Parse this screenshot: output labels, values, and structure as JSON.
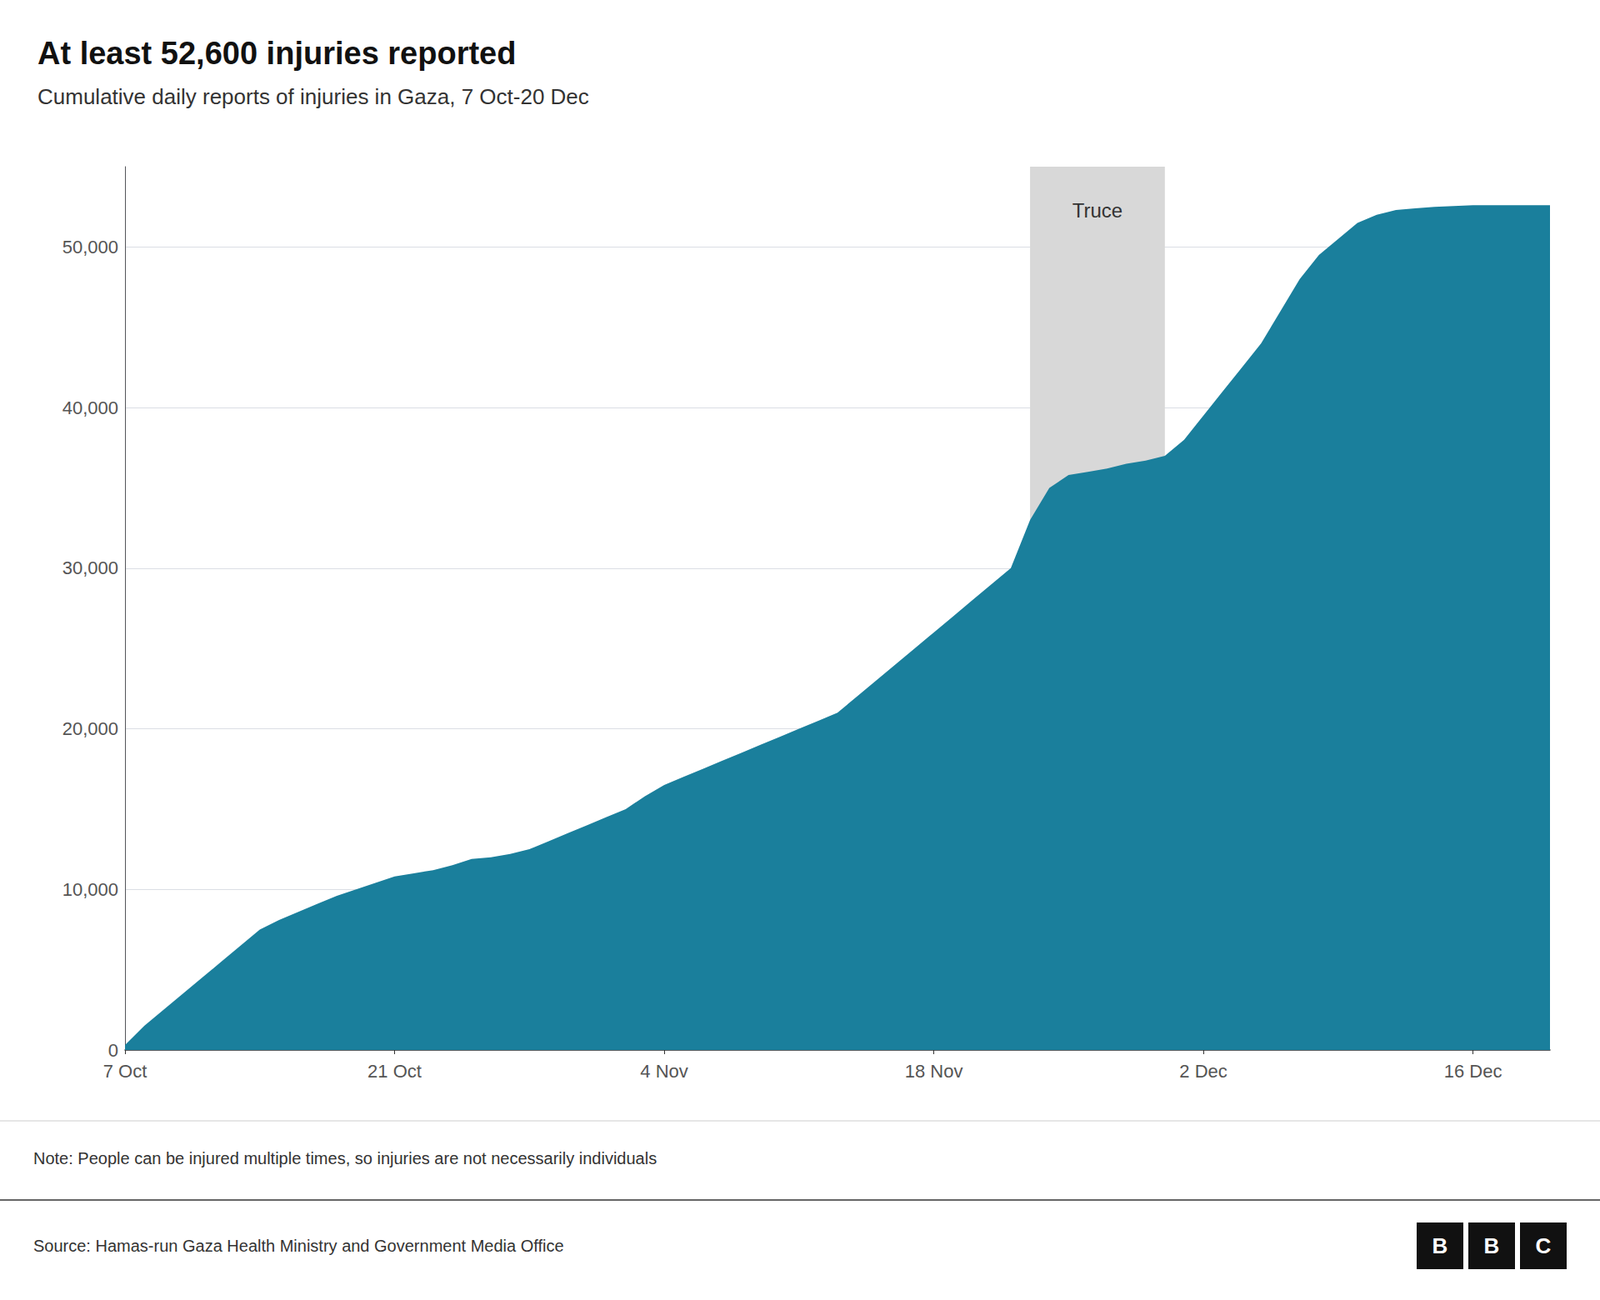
{
  "chart_data": {
    "type": "area",
    "title": "At least 52,600 injuries reported",
    "subtitle": "Cumulative daily reports of injuries in Gaza, 7 Oct-20 Dec",
    "x": [
      0,
      1,
      2,
      3,
      4,
      5,
      6,
      7,
      8,
      9,
      10,
      11,
      12,
      13,
      14,
      15,
      16,
      17,
      18,
      19,
      20,
      21,
      22,
      23,
      24,
      25,
      26,
      27,
      28,
      29,
      30,
      31,
      32,
      33,
      34,
      35,
      36,
      37,
      38,
      39,
      40,
      41,
      42,
      43,
      44,
      45,
      46,
      47,
      48,
      49,
      50,
      51,
      52,
      53,
      54,
      55,
      56,
      57,
      58,
      59,
      60,
      61,
      62,
      63,
      64,
      65,
      66,
      67,
      68,
      69,
      70,
      71,
      72,
      73,
      74
    ],
    "values": [
      306,
      1500,
      2500,
      3500,
      4500,
      5500,
      6500,
      7500,
      8100,
      8600,
      9100,
      9600,
      10000,
      10400,
      10800,
      11000,
      11200,
      11500,
      11900,
      12000,
      12200,
      12500,
      13000,
      13500,
      14000,
      14500,
      15000,
      15800,
      16500,
      17000,
      17500,
      18000,
      18500,
      19000,
      19500,
      20000,
      20500,
      21000,
      22000,
      23000,
      24000,
      25000,
      26000,
      27000,
      28000,
      29000,
      30000,
      33000,
      35000,
      35800,
      36000,
      36200,
      36500,
      36700,
      37000,
      38000,
      39500,
      41000,
      42500,
      44000,
      46000,
      48000,
      49500,
      50500,
      51500,
      52000,
      52300,
      52400,
      52500,
      52550,
      52600,
      52600,
      52600,
      52600,
      52600
    ],
    "color": "#1a7f9c",
    "xlim": [
      0,
      74
    ],
    "xticks": [
      {
        "value": 0,
        "label": "7 Oct"
      },
      {
        "value": 14,
        "label": "21 Oct"
      },
      {
        "value": 28,
        "label": "4 Nov"
      },
      {
        "value": 42,
        "label": "18 Nov"
      },
      {
        "value": 56,
        "label": "2 Dec"
      },
      {
        "value": 70,
        "label": "16 Dec"
      }
    ],
    "ylim": [
      0,
      55000
    ],
    "yticks": [
      0,
      {
        "value": 10000,
        "label": "10,000"
      },
      {
        "value": 20000,
        "label": "20,000"
      },
      {
        "value": 30000,
        "label": "30,000"
      },
      {
        "value": 40000,
        "label": "40,000"
      },
      {
        "value": 50000,
        "label": "50,000"
      }
    ],
    "grid": true,
    "annotations": [
      {
        "text": "Truce",
        "x_start": 47,
        "x_end": 54,
        "color": "#d8d8d8"
      }
    ],
    "note": "Note: People can be injured multiple times, so injuries are not necessarily individuals",
    "source": "Source: Hamas-run Gaza Health Ministry and Government Media Office",
    "logo": [
      "B",
      "B",
      "C"
    ]
  }
}
